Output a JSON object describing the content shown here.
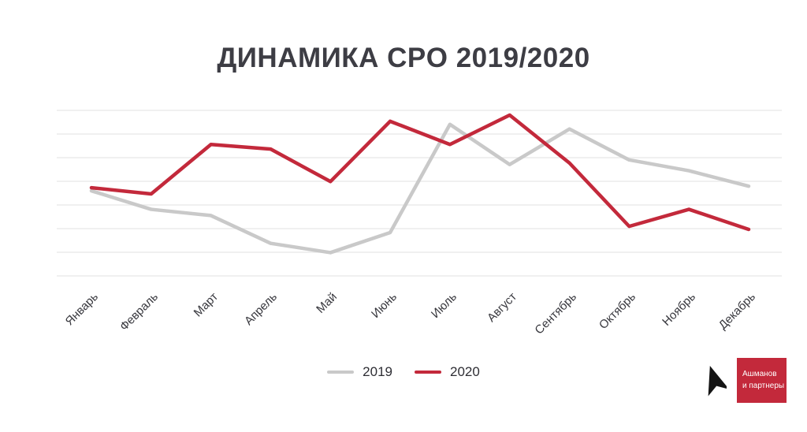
{
  "title": "ДИНАМИКА CPO 2019/2020",
  "chart_data": {
    "type": "line",
    "title": "ДИНАМИКА CPO 2019/2020",
    "categories": [
      "Январь",
      "Февраль",
      "Март",
      "Апрель",
      "Май",
      "Июнь",
      "Июль",
      "Август",
      "Сентябрь",
      "Октябрь",
      "Ноябрь",
      "Декабрь"
    ],
    "series": [
      {
        "name": "2019",
        "color": "#c9c9c9",
        "values": [
          51,
          39,
          35,
          17,
          11,
          24,
          94,
          68,
          91,
          71,
          64,
          54
        ]
      },
      {
        "name": "2020",
        "color": "#c3293b",
        "values": [
          53,
          49,
          81,
          78,
          57,
          96,
          81,
          100,
          69,
          28,
          39,
          26
        ]
      }
    ],
    "xlabel": "",
    "ylabel": "",
    "ylim": [
      0,
      100
    ],
    "y_axis_labels_visible": false,
    "grid": true,
    "gridline_count": 8,
    "legend_position": "bottom-center"
  },
  "legend": {
    "items": [
      {
        "label": "2019",
        "color": "#c9c9c9"
      },
      {
        "label": "2020",
        "color": "#c3293b"
      }
    ]
  },
  "brand": {
    "name_line1": "Ашманов",
    "name_line2": "и партнеры",
    "box_color": "#c3293b",
    "cursor_icon": "cursor-arrow"
  }
}
